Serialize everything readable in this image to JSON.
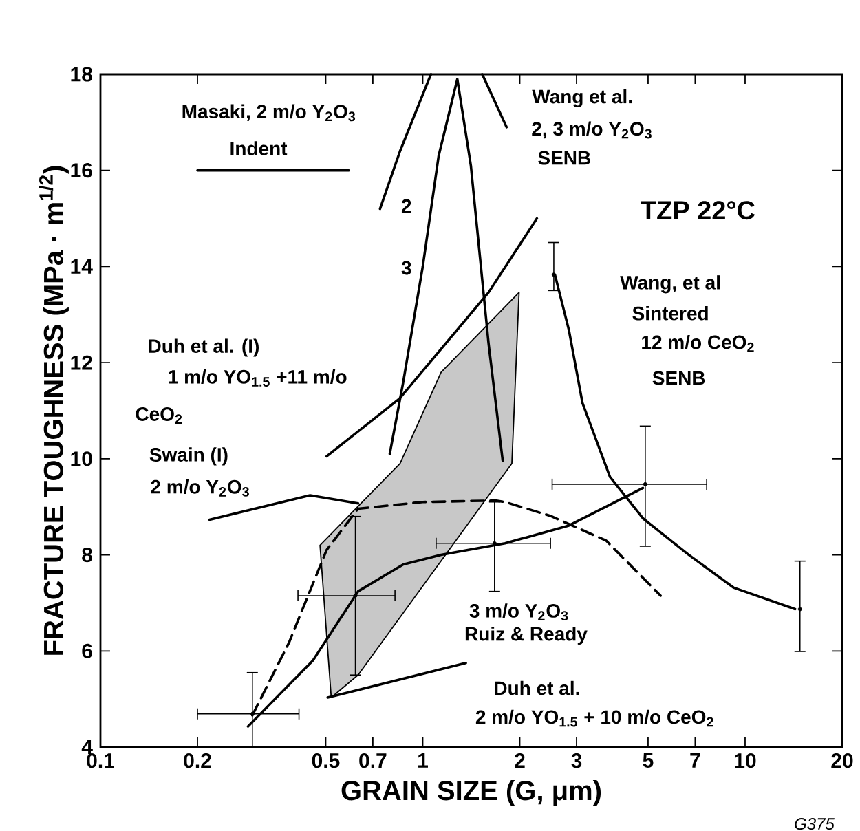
{
  "chart_data": {
    "type": "line",
    "xlabel": "GRAIN SIZE (G, μm)",
    "ylabel": "FRACTURE TOUGHNESS (MPa · m$^{1/2}$)",
    "log": "x",
    "grid": false,
    "xlim": [
      0.1,
      20
    ],
    "ylim": [
      4,
      18
    ],
    "xticks": [
      0.1,
      0.2,
      0.5,
      0.7,
      1,
      2,
      3,
      5,
      7,
      10,
      20
    ],
    "yticks": [
      4,
      6,
      8,
      10,
      12,
      14,
      16,
      18
    ],
    "series": [
      {
        "type": "line",
        "color": "#000000",
        "line_style": "solid",
        "x": [
          0.737,
          0.85,
          1.06,
          null,
          1.53,
          1.82
        ],
        "values": [
          15.2,
          16.4,
          18,
          null,
          18,
          16.9
        ]
      },
      {
        "color": "#000000",
        "line_style": "solid",
        "x": [
          0.79,
          0.87,
          1.0,
          1.12,
          1.28,
          1.41,
          1.6,
          1.77
        ],
        "values": [
          10.1,
          11.6,
          14.0,
          16.3,
          17.9,
          16.1,
          12.4,
          9.96
        ]
      },
      {
        "type": "line",
        "color": "#000000",
        "line_style": "solid",
        "x": [
          0.503,
          0.846,
          1.6,
          2.26
        ],
        "values": [
          10.05,
          11.25,
          13.46,
          15.0
        ]
      },
      {
        "type": "line",
        "color": "#000000",
        "line_style": "solid",
        "x": [
          0.218,
          0.447,
          0.63
        ],
        "values": [
          8.73,
          9.24,
          9.07
        ]
      },
      {
        "type": "line",
        "color": "#000000",
        "line_style": "dashed",
        "x": [
          0.296,
          0.385,
          0.503,
          0.63,
          1.0,
          1.68,
          1.8,
          2.49,
          3.7,
          5.47
        ],
        "values": [
          4.66,
          6.18,
          8.1,
          8.96,
          9.1,
          9.13,
          9.1,
          8.81,
          8.3,
          7.15
        ]
      },
      {
        "type": "line",
        "color": "#000000",
        "line_style": "solid",
        "x": [
          0.287,
          0.456,
          0.63,
          0.87,
          1.14,
          1.8,
          2.84,
          4.82
        ],
        "values": [
          4.43,
          5.8,
          7.24,
          7.8,
          8.0,
          8.24,
          8.61,
          9.39
        ]
      },
      {
        "type": "line",
        "color": "#000000",
        "line_style": "solid",
        "x": [
          2.57,
          2.84,
          3.13,
          3.81,
          4.82,
          6.66,
          9.2,
          14.3
        ],
        "values": [
          13.83,
          12.68,
          11.16,
          9.62,
          8.76,
          8.01,
          7.32,
          6.87
        ]
      },
      {
        "type": "line",
        "color": "#000000",
        "line_style": "solid",
        "x": [
          0.507,
          1.36
        ],
        "values": [
          5.03,
          5.75
        ]
      },
      {
        "type": "line",
        "color": "#000000",
        "line_style": "solid",
        "x": [
          0.2,
          0.59
        ],
        "values": [
          16.0,
          16.0
        ]
      },
      {
        "type": "area",
        "color": "#c8c8c8",
        "x": [
          0.52,
          0.48,
          0.85,
          1.14,
          1.99,
          1.89,
          0.63
        ],
        "values": [
          5.03,
          8.2,
          9.9,
          11.8,
          13.46,
          9.9,
          5.5
        ]
      },
      {
        "type": "scatter",
        "color": "#000000",
        "x": [
          0.296,
          0.618,
          1.67,
          4.9,
          14.8,
          2.55
        ],
        "values": [
          4.69,
          7.15,
          8.24,
          9.47,
          6.87,
          13.83
        ],
        "errors": [
          [
            4.0,
            5.55
          ],
          [
            5.5,
            8.8
          ],
          [
            7.24,
            9.1
          ],
          [
            8.18,
            10.68
          ],
          [
            5.99,
            7.87
          ],
          [
            13.5,
            14.5
          ]
        ],
        "xerrors": [
          [
            0.2,
            0.413
          ],
          [
            0.41,
            0.82
          ],
          [
            1.1,
            2.49
          ],
          [
            2.52,
            7.6
          ],
          null,
          null
        ]
      }
    ],
    "annotations": [
      "Masaki, 2 m/o Y$_{2}$O$_{3}$",
      "Indent",
      "Wang et al.",
      "2, 3 m/o Y$_{2}$O$_{3}$",
      "SENB",
      "TZP   22°C",
      "Wang, et al",
      "Sintered",
      "12 m/o CeO$_{2}$",
      "SENB",
      "Duh et al. (I)",
      "1 m/o YO$_{1.5}$ +11 m/o",
      "CeO$_{2}$",
      "Swain (I)",
      "2 m/o Y$_{2}$O$_{3}$",
      "3 m/o Y$_{2}$O$_{3}$",
      "Ruiz & Ready",
      "Duh et al.",
      "2 m/o YO$_{1.5}$ + 10 m/o CeO$_{2}$",
      "2",
      "3",
      "G375"
    ]
  }
}
